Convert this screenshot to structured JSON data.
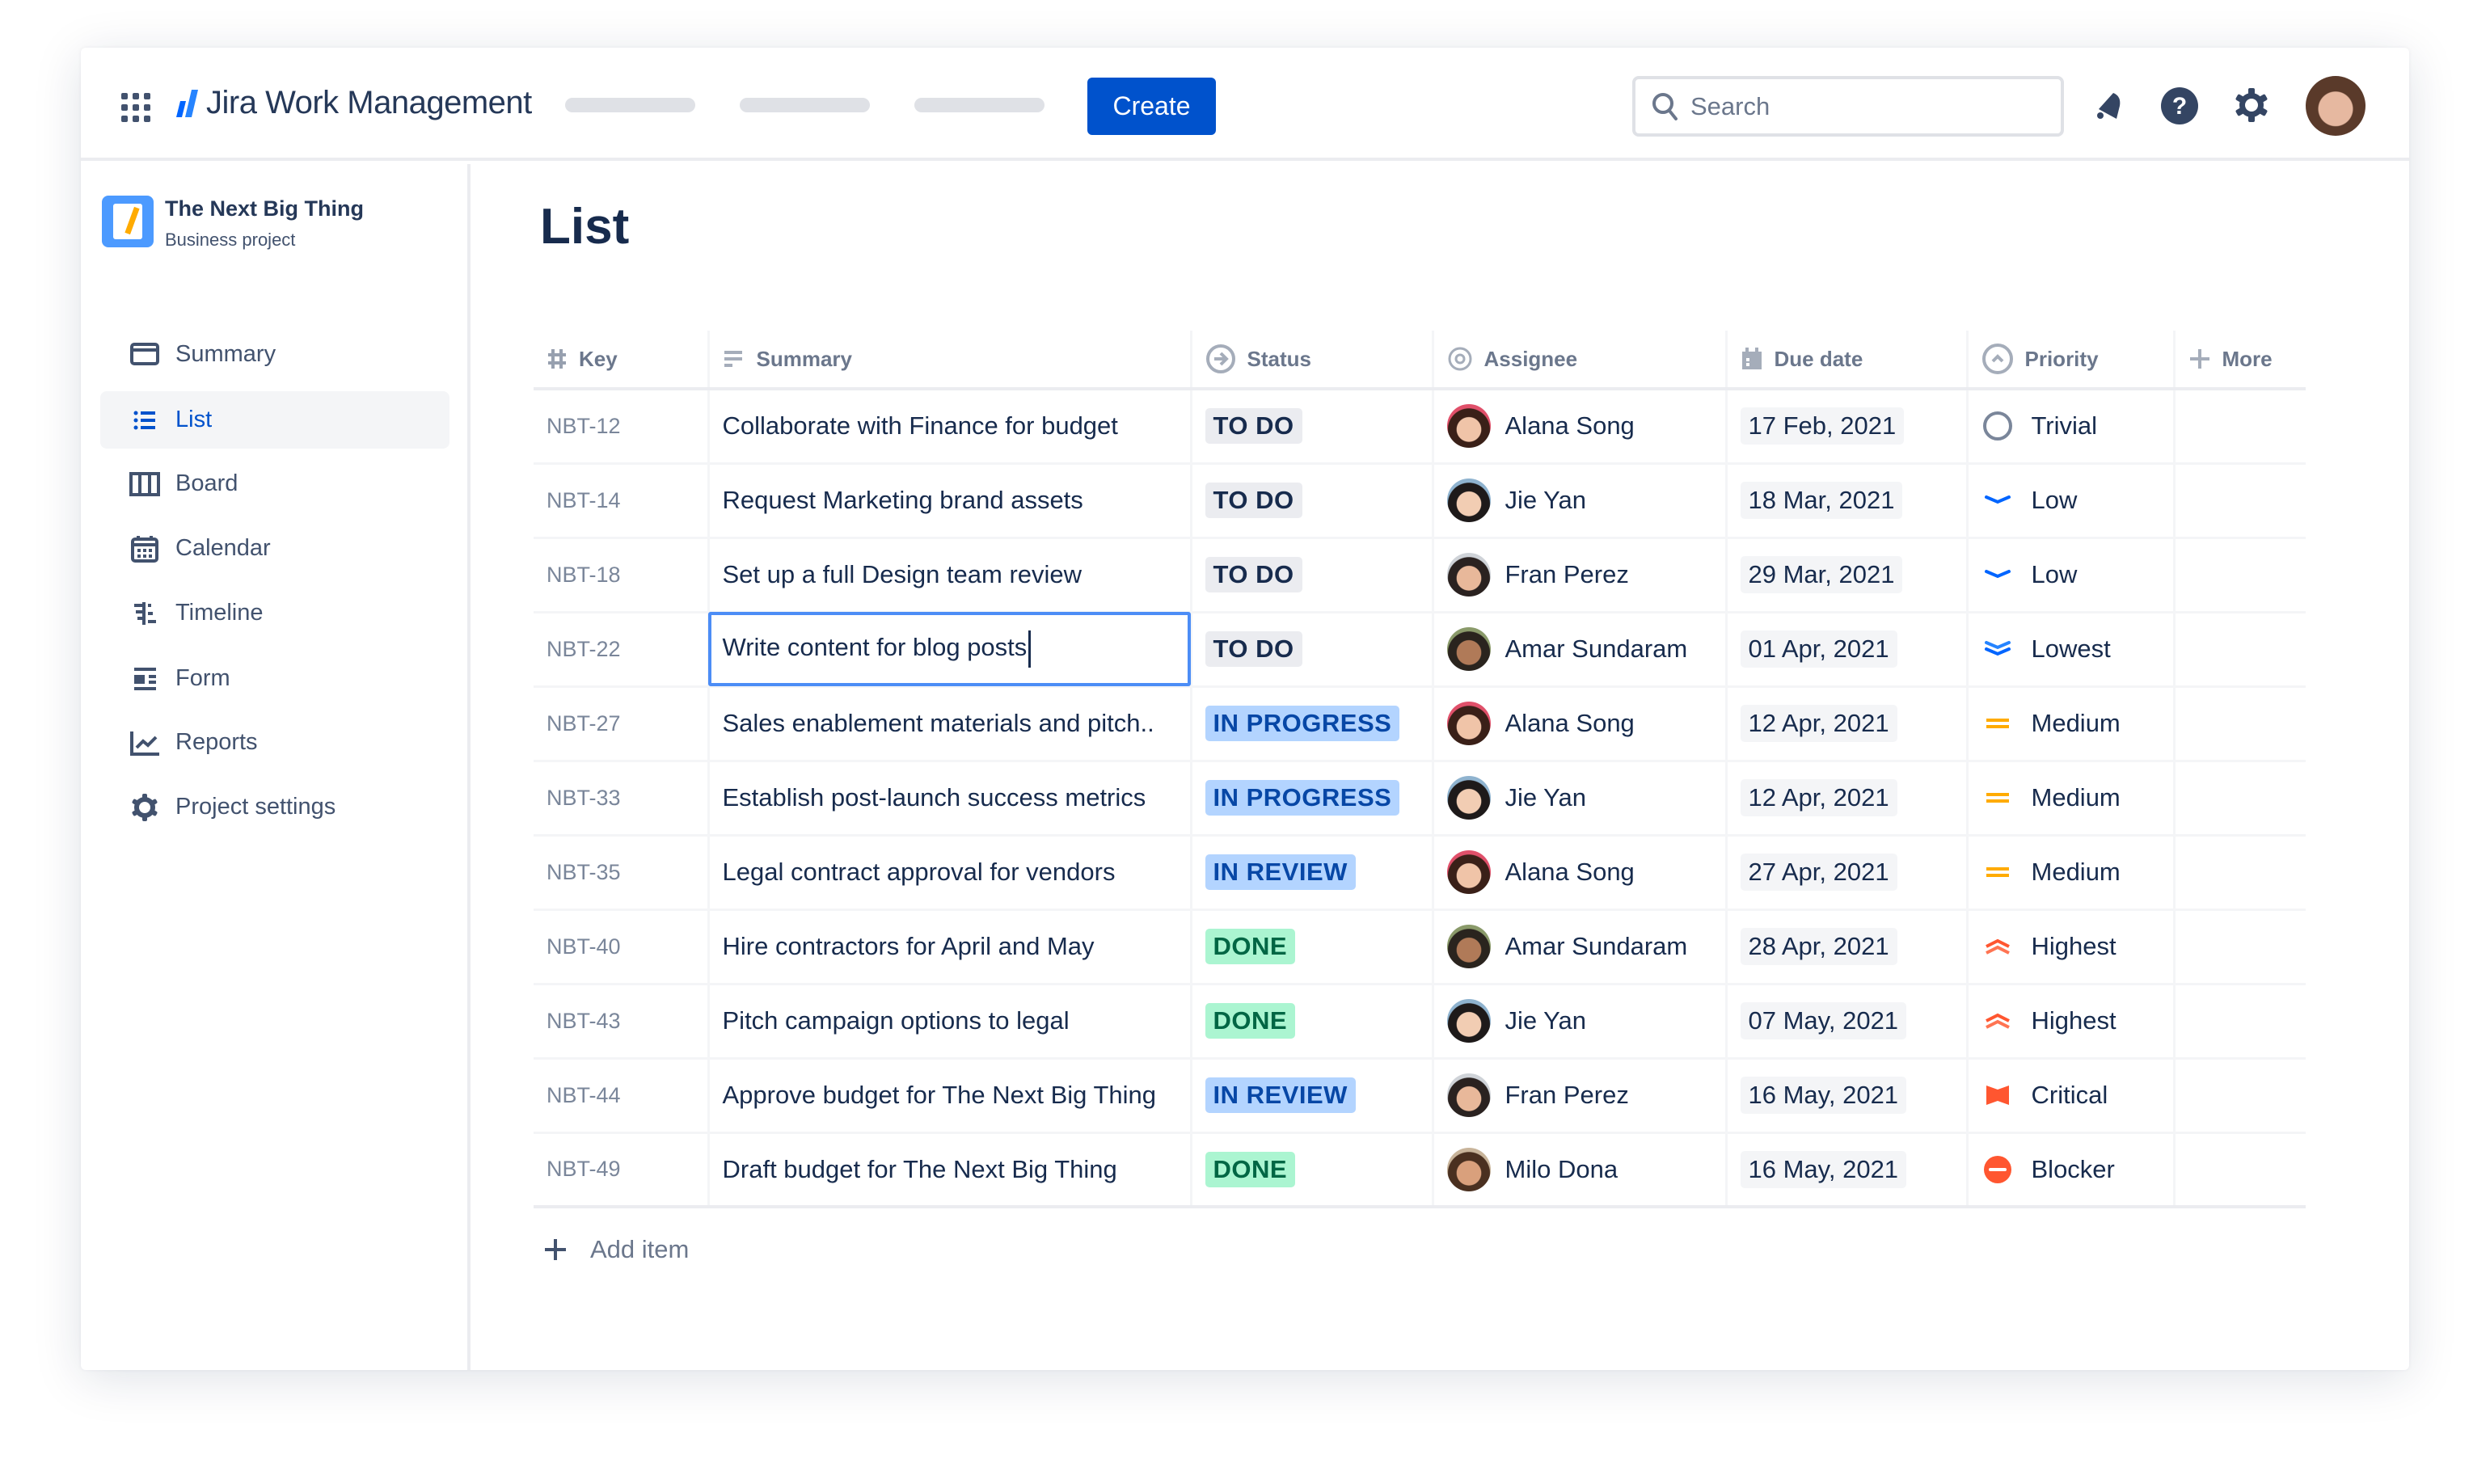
{
  "app": {
    "name": "Jira Work Management",
    "create_label": "Create",
    "search_placeholder": "Search"
  },
  "project": {
    "name": "The Next Big Thing",
    "type": "Business project"
  },
  "sidebar": {
    "items": [
      {
        "label": "Summary",
        "icon": "summary-icon"
      },
      {
        "label": "List",
        "icon": "list-icon",
        "active": true
      },
      {
        "label": "Board",
        "icon": "board-icon"
      },
      {
        "label": "Calendar",
        "icon": "calendar-icon"
      },
      {
        "label": "Timeline",
        "icon": "timeline-icon"
      },
      {
        "label": "Form",
        "icon": "form-icon"
      },
      {
        "label": "Reports",
        "icon": "reports-icon"
      },
      {
        "label": "Project settings",
        "icon": "gear-icon"
      }
    ]
  },
  "page": {
    "title": "List",
    "add_item": "Add item"
  },
  "columns": {
    "key": "Key",
    "summary": "Summary",
    "status": "Status",
    "assignee": "Assignee",
    "due": "Due date",
    "priority": "Priority",
    "more": "More"
  },
  "colors": {
    "accent": "#0052CC",
    "todo": "#EBECF0",
    "in_progress": "#B3D4FF",
    "done": "#ABF5D1",
    "focus": "#4C8DF6"
  },
  "rows": [
    {
      "key": "NBT-12",
      "summary": "Collaborate with Finance for budget",
      "status": "TO DO",
      "assignee": "Alana Song",
      "due": "17 Feb, 2021",
      "priority": "Trivial"
    },
    {
      "key": "NBT-14",
      "summary": "Request Marketing brand assets",
      "status": "TO DO",
      "assignee": "Jie Yan",
      "due": "18 Mar, 2021",
      "priority": "Low"
    },
    {
      "key": "NBT-18",
      "summary": "Set up a full Design team review",
      "status": "TO DO",
      "assignee": "Fran Perez",
      "due": "29 Mar, 2021",
      "priority": "Low"
    },
    {
      "key": "NBT-22",
      "summary": "Write content for blog posts",
      "status": "TO DO",
      "assignee": "Amar Sundaram",
      "due": "01 Apr, 2021",
      "priority": "Lowest",
      "editing": true
    },
    {
      "key": "NBT-27",
      "summary": "Sales enablement materials and pitch..",
      "status": "IN PROGRESS",
      "assignee": "Alana Song",
      "due": "12 Apr, 2021",
      "priority": "Medium"
    },
    {
      "key": "NBT-33",
      "summary": "Establish post-launch success metrics",
      "status": "IN PROGRESS",
      "assignee": "Jie Yan",
      "due": "12 Apr, 2021",
      "priority": "Medium"
    },
    {
      "key": "NBT-35",
      "summary": "Legal contract approval for vendors",
      "status": "IN REVIEW",
      "assignee": "Alana Song",
      "due": "27 Apr, 2021",
      "priority": "Medium"
    },
    {
      "key": "NBT-40",
      "summary": "Hire contractors for April and May",
      "status": "DONE",
      "assignee": "Amar Sundaram",
      "due": "28 Apr, 2021",
      "priority": "Highest"
    },
    {
      "key": "NBT-43",
      "summary": "Pitch campaign options to legal",
      "status": "DONE",
      "assignee": "Jie Yan",
      "due": "07 May, 2021",
      "priority": "Highest"
    },
    {
      "key": "NBT-44",
      "summary": "Approve budget for The Next Big Thing",
      "status": "IN REVIEW",
      "assignee": "Fran Perez",
      "due": "16 May, 2021",
      "priority": "Critical"
    },
    {
      "key": "NBT-49",
      "summary": "Draft budget for The Next Big Thing",
      "status": "DONE",
      "assignee": "Milo Dona",
      "due": "16 May, 2021",
      "priority": "Blocker"
    }
  ]
}
